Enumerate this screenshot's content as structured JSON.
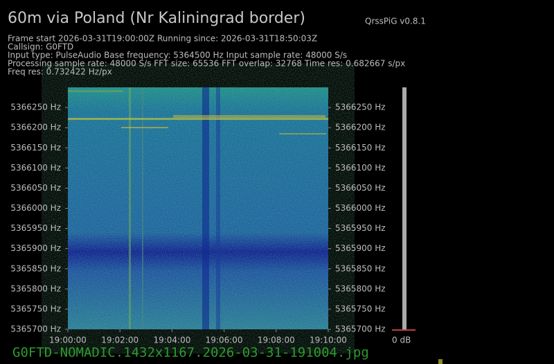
{
  "header": {
    "title": "60m via Poland (Nr Kaliningrad border)",
    "version": "QrssPiG v0.8.1",
    "info_lines": [
      "Frame start 2026-03-31T19:00:00Z Running since: 2026-03-31T18:50:03Z",
      "Callsign: G0FTD",
      "Input type: PulseAudio Base frequency: 5364500 Hz Input sample rate: 48000 S/s",
      "Processing sample rate: 48000 S/s FFT size: 65536 FFT overlap: 32768 Time res: 0.682667 s/px",
      "Freq res: 0.732422 Hz/px"
    ]
  },
  "chart_data": {
    "type": "spectrogram",
    "ylim": [
      5365700,
      5366300
    ],
    "yticks": [
      {
        "value": 5366250,
        "label": "5366250 Hz"
      },
      {
        "value": 5366200,
        "label": "5366200 Hz"
      },
      {
        "value": 5366150,
        "label": "5366150 Hz"
      },
      {
        "value": 5366100,
        "label": "5366100 Hz"
      },
      {
        "value": 5366050,
        "label": "5366050 Hz"
      },
      {
        "value": 5366000,
        "label": "5366000 Hz"
      },
      {
        "value": 5365950,
        "label": "5365950 Hz"
      },
      {
        "value": 5365900,
        "label": "5365900 Hz"
      },
      {
        "value": 5365850,
        "label": "5365850 Hz"
      },
      {
        "value": 5365800,
        "label": "5365800 Hz"
      },
      {
        "value": 5365750,
        "label": "5365750 Hz"
      },
      {
        "value": 5365700,
        "label": "5365700 Hz"
      }
    ],
    "xlim": [
      0,
      600
    ],
    "xticks": [
      {
        "value": 0,
        "label": "19:00:00"
      },
      {
        "value": 120,
        "label": "19:02:00"
      },
      {
        "value": 240,
        "label": "19:04:00"
      },
      {
        "value": 360,
        "label": "19:06:00"
      },
      {
        "value": 480,
        "label": "19:08:00"
      },
      {
        "value": 600,
        "label": "19:10:00"
      }
    ],
    "level_label": "0 dB"
  },
  "footer": {
    "filename": "G0FTD-NOMADIC.1432x1167.2026-03-31-191004.jpg"
  }
}
